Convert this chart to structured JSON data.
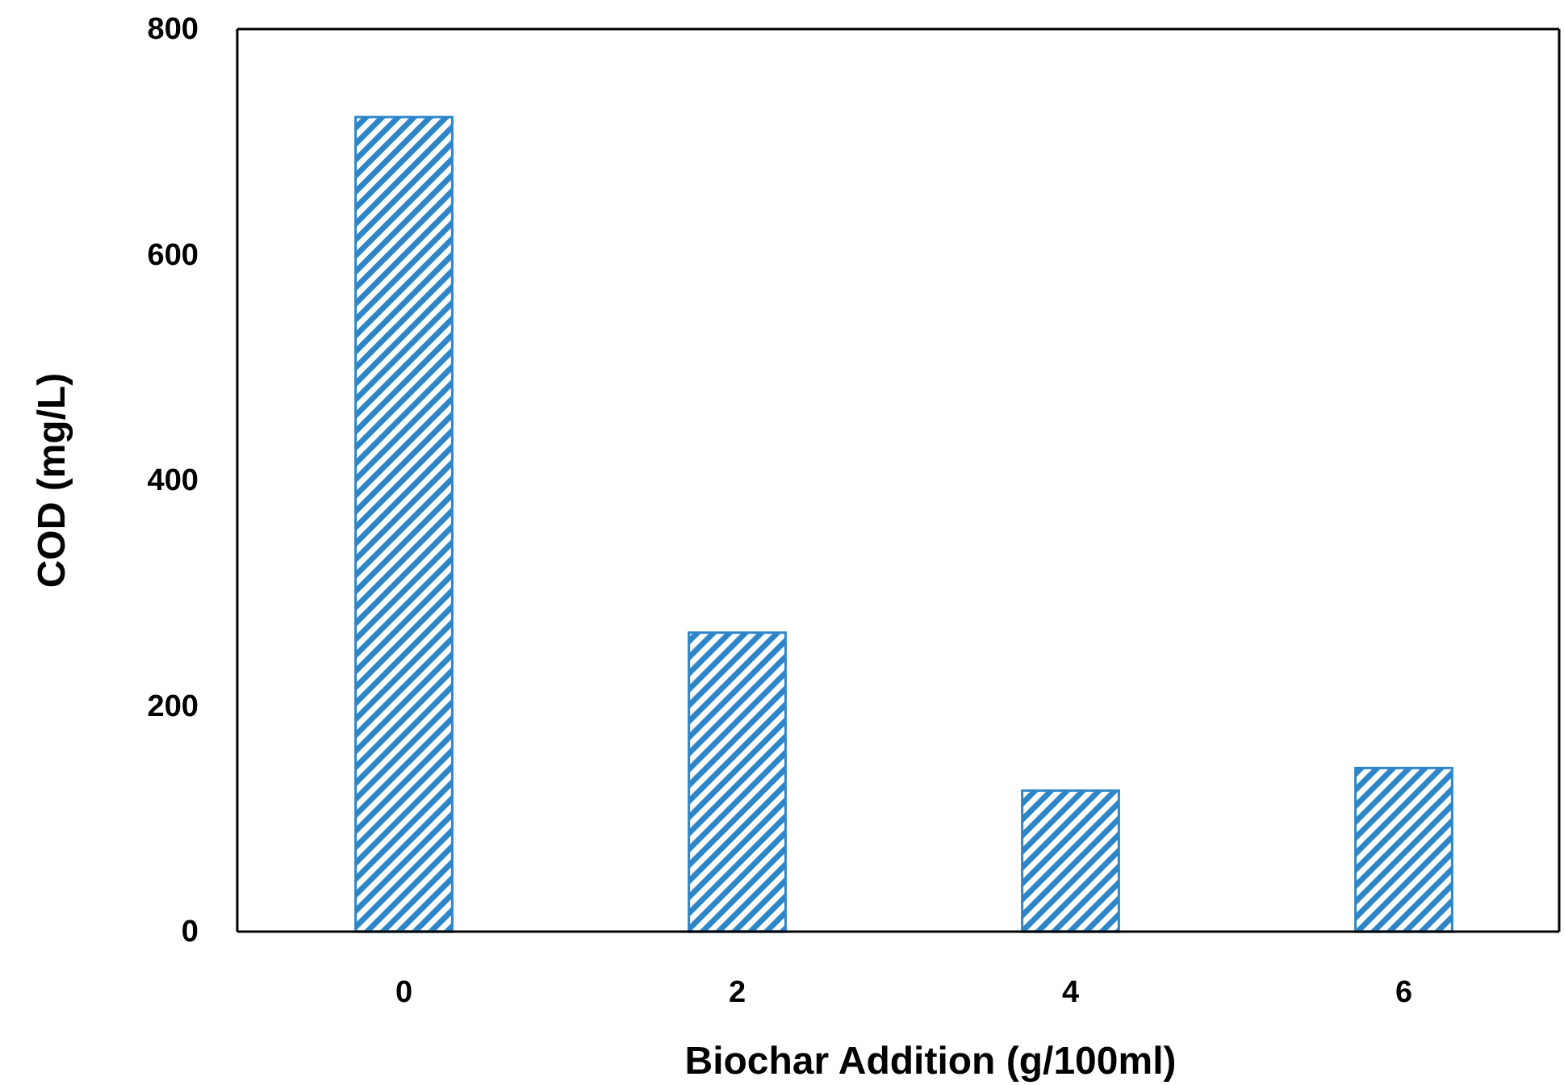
{
  "chart_data": {
    "type": "bar",
    "xlabel": "Biochar Addition (g/100ml)",
    "ylabel": "COD (mg/L)",
    "categories": [
      "0",
      "2",
      "4",
      "6"
    ],
    "values": [
      722,
      265,
      125,
      145
    ],
    "color": "#2e86c8",
    "ylim": [
      0,
      800
    ],
    "yticks": [
      0,
      200,
      400,
      600,
      800
    ],
    "grid": false
  }
}
